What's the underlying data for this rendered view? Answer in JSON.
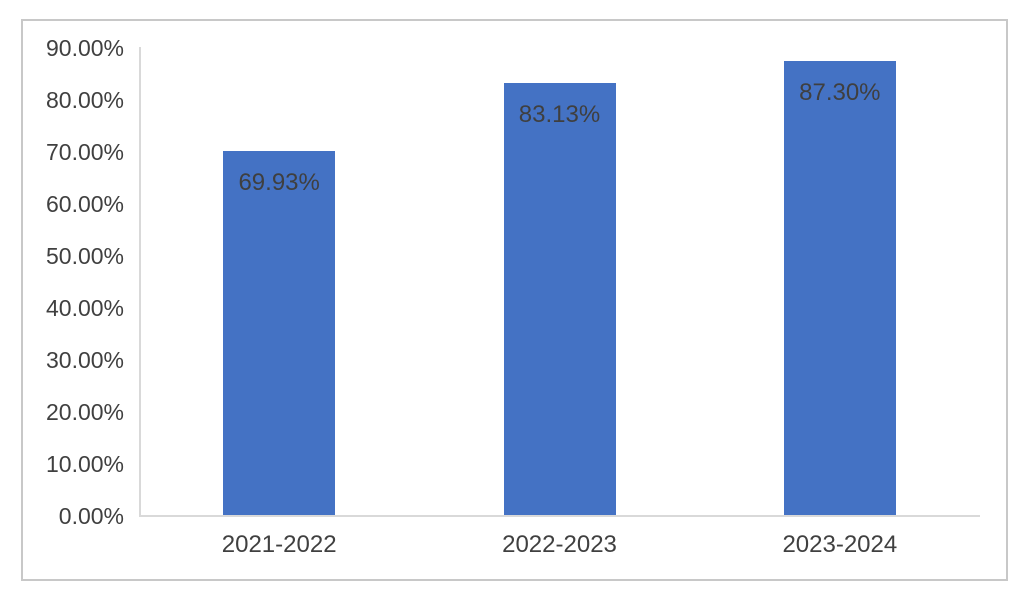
{
  "chart_data": {
    "type": "bar",
    "title": "",
    "xlabel": "",
    "ylabel": "",
    "categories": [
      "2021-2022",
      "2022-2023",
      "2023-2024"
    ],
    "values": [
      69.93,
      83.13,
      87.3
    ],
    "data_labels": [
      "69.93%",
      "83.13%",
      "87.30%"
    ],
    "ytick_values": [
      90,
      80,
      70,
      60,
      50,
      40,
      30,
      20,
      10,
      0
    ],
    "ytick_labels": [
      "90.00%",
      "80.00%",
      "70.00%",
      "60.00%",
      "50.00%",
      "40.00%",
      "30.00%",
      "20.00%",
      "10.00%",
      "0.00%"
    ],
    "ylim": [
      0,
      90
    ],
    "grid": false,
    "legend_position": "none",
    "data_label_position": "inside-end",
    "colors": {
      "bar": "#4472C4",
      "axis_line": "#D9D9D9",
      "frame_border": "#C8C8C8",
      "text": "#404040",
      "background": "#FFFFFF"
    }
  }
}
